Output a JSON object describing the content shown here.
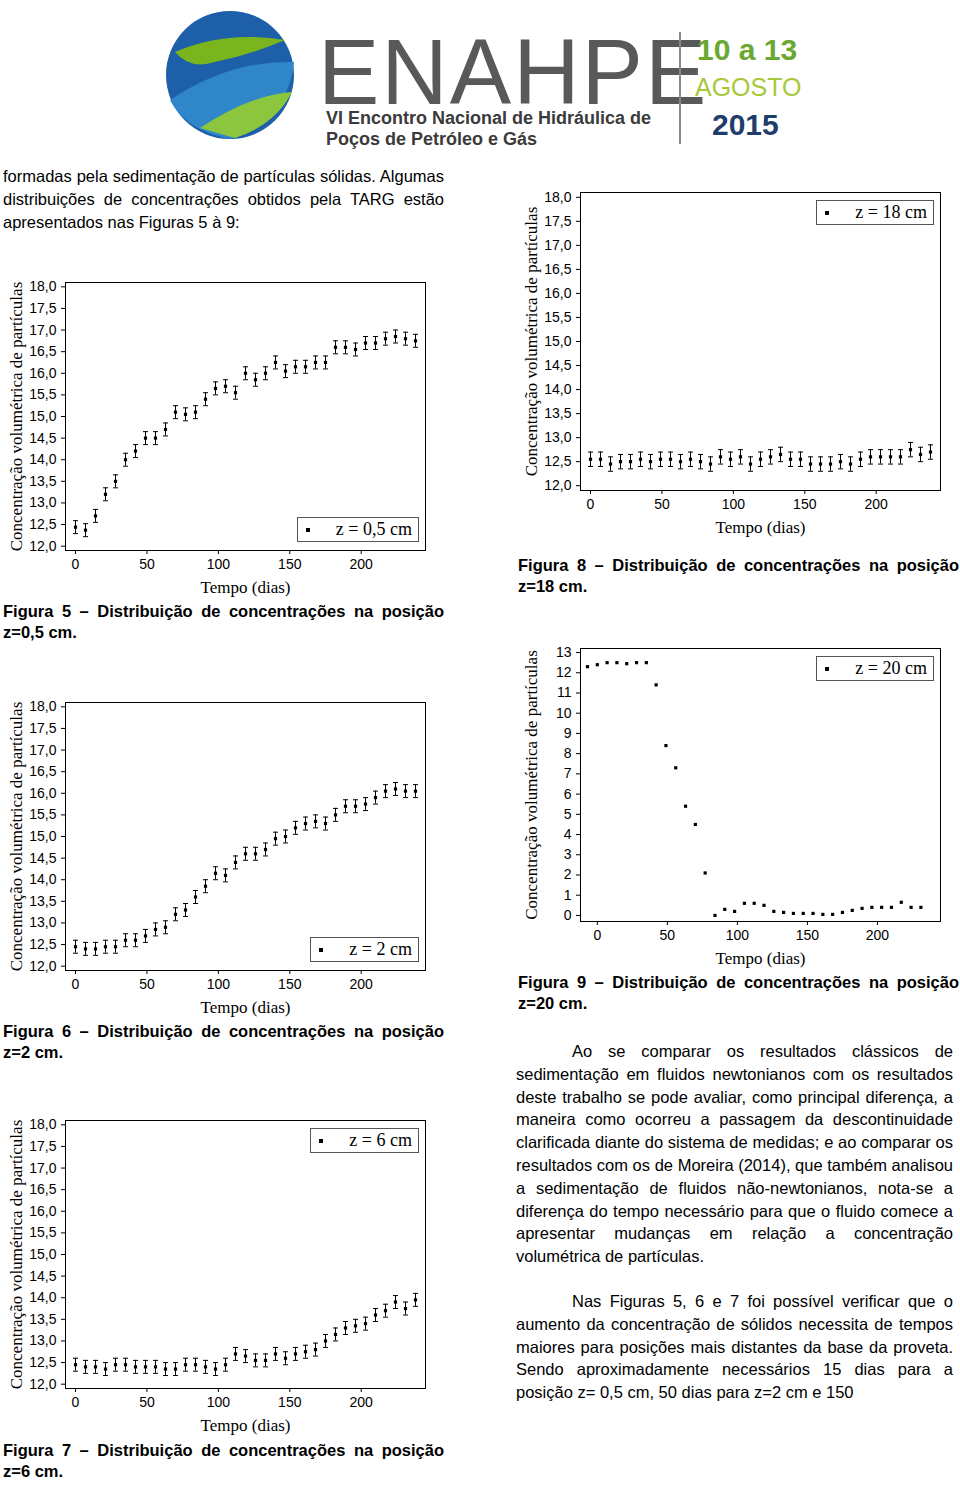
{
  "header": {
    "logo_text": "ENAHPE",
    "subtitle": [
      "VI Encontro Nacional de Hidráulica de",
      "Poços de Petróleo e Gás"
    ],
    "dates": "10 a 13",
    "month": "AGOSTO",
    "year": "2015"
  },
  "intro": "formadas pela sedimentação de partículas sólidas. Algumas distribuições de concentrações obtidos pela TARG estão apresentados nas Figuras 5 à 9:",
  "chart_data": [
    {
      "type": "scatter",
      "caption": "Figura 5 – Distribuição de concentrações na posição z=0,5 cm.",
      "xlabel": "Tempo (dias)",
      "ylabel": "Concentração volumétrica de partículas",
      "legend": "lower right",
      "grid": false,
      "x": [
        0,
        7,
        14,
        21,
        28,
        35,
        42,
        49,
        56,
        63,
        70,
        77,
        84,
        91,
        98,
        105,
        112,
        119,
        126,
        133,
        140,
        147,
        154,
        161,
        168,
        175,
        182,
        189,
        196,
        203,
        210,
        217,
        224,
        231,
        238
      ],
      "series": [
        {
          "name": "z = 0,5 cm",
          "color": "#000000",
          "marker": "square",
          "values": [
            12.44,
            12.37,
            12.7,
            13.2,
            13.5,
            14.0,
            14.2,
            14.5,
            14.5,
            14.7,
            15.1,
            15.05,
            15.1,
            15.4,
            15.65,
            15.7,
            15.55,
            16.0,
            15.85,
            16.0,
            16.25,
            16.05,
            16.15,
            16.15,
            16.25,
            16.25,
            16.6,
            16.6,
            16.55,
            16.7,
            16.7,
            16.8,
            16.85,
            16.8,
            16.75
          ],
          "errors": [
            0.15,
            0.15,
            0.15,
            0.15,
            0.15,
            0.15,
            0.15,
            0.15,
            0.15,
            0.15,
            0.15,
            0.15,
            0.15,
            0.15,
            0.15,
            0.15,
            0.15,
            0.15,
            0.15,
            0.15,
            0.15,
            0.15,
            0.15,
            0.15,
            0.15,
            0.15,
            0.15,
            0.15,
            0.15,
            0.15,
            0.15,
            0.15,
            0.15,
            0.15,
            0.15
          ]
        }
      ],
      "xlim": [
        -7,
        245
      ],
      "xticks": [
        0,
        50,
        100,
        150,
        200
      ],
      "ylim": [
        11.9,
        18.1
      ],
      "yticks": [
        {
          "value": 12,
          "label": "12,0"
        },
        {
          "value": 12.5,
          "label": "12,5"
        },
        {
          "value": 13,
          "label": "13,0"
        },
        {
          "value": 13.5,
          "label": "13,5"
        },
        {
          "value": 14,
          "label": "14,0"
        },
        {
          "value": 14.5,
          "label": "14,5"
        },
        {
          "value": 15,
          "label": "15,0"
        },
        {
          "value": 15.5,
          "label": "15,5"
        },
        {
          "value": 16,
          "label": "16,0"
        },
        {
          "value": 16.5,
          "label": "16,5"
        },
        {
          "value": 17,
          "label": "17,0"
        },
        {
          "value": 17.5,
          "label": "17,5"
        },
        {
          "value": 18,
          "label": "18,0"
        }
      ]
    },
    {
      "type": "scatter",
      "caption": "Figura 6 – Distribuição de concentrações na posição z=2 cm.",
      "xlabel": "Tempo (dias)",
      "ylabel": "Concentração volumétrica de partículas",
      "legend": "lower right",
      "grid": false,
      "x": [
        0,
        7,
        14,
        21,
        28,
        35,
        42,
        49,
        56,
        63,
        70,
        77,
        84,
        91,
        98,
        105,
        112,
        119,
        126,
        133,
        140,
        147,
        154,
        161,
        168,
        175,
        182,
        189,
        196,
        203,
        210,
        217,
        224,
        231,
        238
      ],
      "series": [
        {
          "name": "z = 2 cm",
          "color": "#000000",
          "marker": "square",
          "values": [
            12.45,
            12.4,
            12.4,
            12.45,
            12.45,
            12.6,
            12.6,
            12.7,
            12.85,
            12.9,
            13.2,
            13.3,
            13.6,
            13.85,
            14.15,
            14.1,
            14.4,
            14.6,
            14.6,
            14.7,
            14.95,
            15.0,
            15.2,
            15.3,
            15.35,
            15.3,
            15.5,
            15.7,
            15.7,
            15.75,
            15.9,
            16.05,
            16.1,
            16.05,
            16.05
          ],
          "errors": [
            0.15,
            0.15,
            0.15,
            0.15,
            0.15,
            0.15,
            0.15,
            0.15,
            0.15,
            0.15,
            0.15,
            0.15,
            0.15,
            0.15,
            0.15,
            0.15,
            0.15,
            0.15,
            0.15,
            0.15,
            0.15,
            0.15,
            0.15,
            0.15,
            0.15,
            0.15,
            0.15,
            0.15,
            0.15,
            0.15,
            0.15,
            0.15,
            0.15,
            0.15,
            0.15
          ]
        }
      ],
      "xlim": [
        -7,
        245
      ],
      "xticks": [
        0,
        50,
        100,
        150,
        200
      ],
      "ylim": [
        11.9,
        18.1
      ],
      "yticks": [
        {
          "value": 12,
          "label": "12,0"
        },
        {
          "value": 12.5,
          "label": "12,5"
        },
        {
          "value": 13,
          "label": "13,0"
        },
        {
          "value": 13.5,
          "label": "13,5"
        },
        {
          "value": 14,
          "label": "14,0"
        },
        {
          "value": 14.5,
          "label": "14,5"
        },
        {
          "value": 15,
          "label": "15,0"
        },
        {
          "value": 15.5,
          "label": "15,5"
        },
        {
          "value": 16,
          "label": "16,0"
        },
        {
          "value": 16.5,
          "label": "16,5"
        },
        {
          "value": 17,
          "label": "17,0"
        },
        {
          "value": 17.5,
          "label": "17,5"
        },
        {
          "value": 18,
          "label": "18,0"
        }
      ]
    },
    {
      "type": "scatter",
      "caption": "Figura 7 – Distribuição de concentrações na posição z=6 cm.",
      "xlabel": "Tempo (dias)",
      "ylabel": "Concentração volumétrica de partículas",
      "legend": "upper right",
      "grid": false,
      "x": [
        0,
        7,
        14,
        21,
        28,
        35,
        42,
        49,
        56,
        63,
        70,
        77,
        84,
        91,
        98,
        105,
        112,
        119,
        126,
        133,
        140,
        147,
        154,
        161,
        168,
        175,
        182,
        189,
        196,
        203,
        210,
        217,
        224,
        231,
        238
      ],
      "series": [
        {
          "name": "z = 6 cm",
          "color": "#000000",
          "marker": "square",
          "values": [
            12.45,
            12.4,
            12.4,
            12.35,
            12.45,
            12.45,
            12.4,
            12.4,
            12.4,
            12.35,
            12.35,
            12.45,
            12.45,
            12.4,
            12.35,
            12.45,
            12.7,
            12.65,
            12.55,
            12.55,
            12.7,
            12.6,
            12.7,
            12.75,
            12.8,
            13.0,
            13.15,
            13.3,
            13.35,
            13.4,
            13.6,
            13.7,
            13.9,
            13.75,
            13.95
          ],
          "errors": [
            0.15,
            0.15,
            0.15,
            0.15,
            0.15,
            0.15,
            0.15,
            0.15,
            0.15,
            0.15,
            0.15,
            0.15,
            0.15,
            0.15,
            0.15,
            0.15,
            0.15,
            0.15,
            0.15,
            0.15,
            0.15,
            0.15,
            0.15,
            0.15,
            0.15,
            0.15,
            0.15,
            0.15,
            0.15,
            0.15,
            0.15,
            0.15,
            0.15,
            0.15,
            0.15
          ]
        }
      ],
      "xlim": [
        -7,
        245
      ],
      "xticks": [
        0,
        50,
        100,
        150,
        200
      ],
      "ylim": [
        11.9,
        18.1
      ],
      "yticks": [
        {
          "value": 12,
          "label": "12,0"
        },
        {
          "value": 12.5,
          "label": "12,5"
        },
        {
          "value": 13,
          "label": "13,0"
        },
        {
          "value": 13.5,
          "label": "13,5"
        },
        {
          "value": 14,
          "label": "14,0"
        },
        {
          "value": 14.5,
          "label": "14,5"
        },
        {
          "value": 15,
          "label": "15,0"
        },
        {
          "value": 15.5,
          "label": "15,5"
        },
        {
          "value": 16,
          "label": "16,0"
        },
        {
          "value": 16.5,
          "label": "16,5"
        },
        {
          "value": 17,
          "label": "17,0"
        },
        {
          "value": 17.5,
          "label": "17,5"
        },
        {
          "value": 18,
          "label": "18,0"
        }
      ]
    },
    {
      "type": "scatter",
      "caption": "Figura 8 – Distribuição de concentrações na posição z=18 cm.",
      "xlabel": "Tempo (dias)",
      "ylabel": "Concentração volumétrica de partículas",
      "legend": "upper right",
      "grid": false,
      "x": [
        0,
        7,
        14,
        21,
        28,
        35,
        42,
        49,
        56,
        63,
        70,
        77,
        84,
        91,
        98,
        105,
        112,
        119,
        126,
        133,
        140,
        147,
        154,
        161,
        168,
        175,
        182,
        189,
        196,
        203,
        210,
        217,
        224,
        231,
        238
      ],
      "series": [
        {
          "name": "z = 18 cm",
          "color": "#000000",
          "marker": "square",
          "values": [
            12.55,
            12.55,
            12.45,
            12.5,
            12.5,
            12.55,
            12.5,
            12.55,
            12.55,
            12.5,
            12.55,
            12.5,
            12.45,
            12.6,
            12.55,
            12.6,
            12.45,
            12.55,
            12.6,
            12.65,
            12.55,
            12.55,
            12.45,
            12.45,
            12.45,
            12.5,
            12.45,
            12.55,
            12.6,
            12.6,
            12.6,
            12.6,
            12.75,
            12.65,
            12.7
          ],
          "errors": [
            0.15,
            0.15,
            0.15,
            0.15,
            0.15,
            0.15,
            0.15,
            0.15,
            0.15,
            0.15,
            0.15,
            0.15,
            0.15,
            0.15,
            0.15,
            0.15,
            0.15,
            0.15,
            0.15,
            0.15,
            0.15,
            0.15,
            0.15,
            0.15,
            0.15,
            0.15,
            0.15,
            0.15,
            0.15,
            0.15,
            0.15,
            0.15,
            0.15,
            0.15,
            0.15
          ]
        }
      ],
      "xlim": [
        -7,
        245
      ],
      "xticks": [
        0,
        50,
        100,
        150,
        200
      ],
      "ylim": [
        11.9,
        18.1
      ],
      "yticks": [
        {
          "value": 12,
          "label": "12,0"
        },
        {
          "value": 12.5,
          "label": "12,5"
        },
        {
          "value": 13,
          "label": "13,0"
        },
        {
          "value": 13.5,
          "label": "13,5"
        },
        {
          "value": 14,
          "label": "14,0"
        },
        {
          "value": 14.5,
          "label": "14,5"
        },
        {
          "value": 15,
          "label": "15,0"
        },
        {
          "value": 15.5,
          "label": "15,5"
        },
        {
          "value": 16,
          "label": "16,0"
        },
        {
          "value": 16.5,
          "label": "16,5"
        },
        {
          "value": 17,
          "label": "17,0"
        },
        {
          "value": 17.5,
          "label": "17,5"
        },
        {
          "value": 18,
          "label": "18,0"
        }
      ]
    },
    {
      "type": "scatter",
      "caption": "Figura 9 – Distribuição de concentrações na posição z=20 cm.",
      "xlabel": "Tempo (dias)",
      "ylabel": "Concentração volumétrica de partículas",
      "legend": "upper right",
      "grid": false,
      "x": [
        -7,
        0,
        7,
        14,
        21,
        28,
        35,
        42,
        49,
        56,
        63,
        70,
        77,
        84,
        91,
        98,
        105,
        112,
        119,
        126,
        133,
        140,
        147,
        154,
        161,
        168,
        175,
        182,
        189,
        196,
        203,
        210,
        217,
        224,
        231
      ],
      "series": [
        {
          "name": "z = 20 cm",
          "color": "#000000",
          "marker": "square",
          "values": [
            12.3,
            12.4,
            12.5,
            12.5,
            12.45,
            12.5,
            12.5,
            11.4,
            8.4,
            7.3,
            5.4,
            4.5,
            2.1,
            0.0,
            0.3,
            0.2,
            0.6,
            0.6,
            0.5,
            0.2,
            0.15,
            0.1,
            0.1,
            0.1,
            0.05,
            0.05,
            0.15,
            0.25,
            0.35,
            0.4,
            0.4,
            0.4,
            0.65,
            0.4,
            0.4
          ]
        }
      ],
      "xlim": [
        -12,
        245
      ],
      "xticks": [
        0,
        50,
        100,
        150,
        200
      ],
      "ylim": [
        -0.3,
        13.2
      ],
      "yticks": [
        0,
        1,
        2,
        3,
        4,
        5,
        6,
        7,
        8,
        9,
        10,
        11,
        12,
        13
      ]
    }
  ],
  "paragraphs": [
    "Ao se comparar os resultados clássicos de sedimentação em fluidos newtonianos com os resultados deste trabalho se pode avaliar, como principal diferença, a maneira como ocorreu a passagem da descontinuidade clarificada diante do sistema de medidas; e ao comparar os resultados com os de Moreira (2014), que também analisou a sedimentação de fluidos não-newtonianos, nota-se a diferença do tempo necessário para que o fluido comece a apresentar mudanças em relação a concentração volumétrica de partículas.",
    "Nas Figuras 5, 6 e 7 foi possível verificar que o aumento da concentração de sólidos necessita de tempos maiores para posições mais distantes da base da proveta. Sendo aproximadamente necessários 15 dias para a posição z= 0,5 cm, 50 dias para z=2 cm e 150"
  ]
}
